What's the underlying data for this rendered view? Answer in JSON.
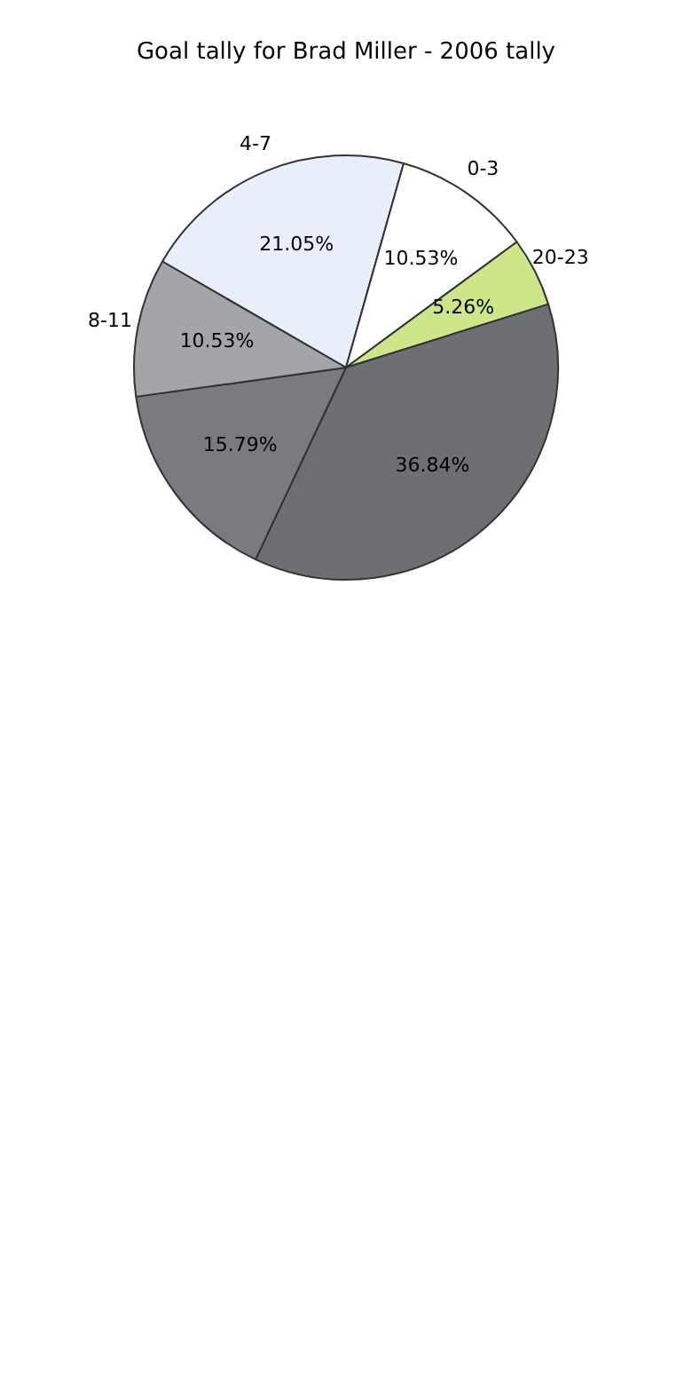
{
  "chart_data": {
    "type": "pie",
    "title": "Goal tally for Brad Miller - 2006 tally",
    "categories": [
      "4-7",
      "0-3",
      "20-23",
      null,
      null,
      "8-11"
    ],
    "values": [
      21.05,
      10.53,
      5.26,
      36.84,
      15.79,
      10.53
    ],
    "colors": [
      "#e8eefc",
      "#ffffff",
      "#cde68a",
      "#6e6f73",
      "#7a7b7e",
      "#a4a5a8"
    ],
    "value_labels": [
      "21.05%",
      "10.53%",
      "5.26%",
      "36.84%",
      "15.79%",
      "10.53%"
    ],
    "legend": false
  }
}
